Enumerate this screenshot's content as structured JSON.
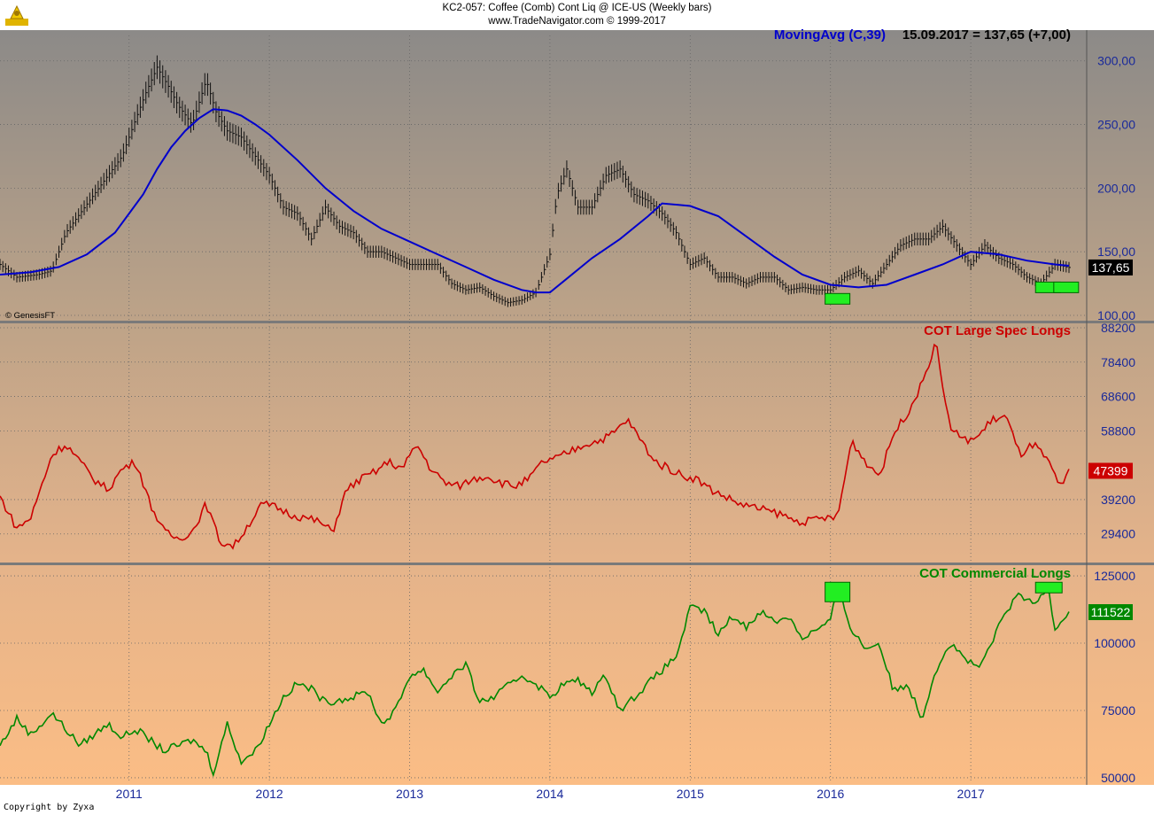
{
  "header": {
    "symbol_line": "KC2-057:  Coffee (Comb) Cont Liq @ ICE-US  (Weekly bars)",
    "source_line": "www.TradeNavigator.com © 1999-2017"
  },
  "footer": {
    "copyright": "Copyright by Zyxa"
  },
  "watermark": "© GenesisFT",
  "colors": {
    "price": "#000000",
    "ma": "#0000cc",
    "spec": "#cc0000",
    "comm": "#008800",
    "highlight": "#22ee22",
    "grid": "#666666"
  },
  "chart_data": [
    {
      "type": "line",
      "panel": "price",
      "title": "MovingAvg (C,39)",
      "readout": "15.09.2017 = 137,65 (+7,00)",
      "last_value_label": "137,65",
      "ylim": [
        100,
        320
      ],
      "yticks": [
        100,
        150,
        200,
        250,
        300
      ],
      "ytick_labels": [
        "100,00",
        "150,00",
        "200,00",
        "250,00",
        "300,00"
      ],
      "x_ticks": [
        2011,
        2012,
        2013,
        2014,
        2015,
        2016,
        2017
      ],
      "x_tick_labels": [
        "2011",
        "2012",
        "2013",
        "2014",
        "2015",
        "2016",
        "2017"
      ],
      "xlim": [
        2010.08,
        2017.82
      ],
      "series": [
        {
          "name": "Price (weekly close)",
          "style": "bars",
          "x": [
            2010.08,
            2010.2,
            2010.35,
            2010.45,
            2010.55,
            2010.65,
            2010.75,
            2010.85,
            2010.95,
            2011.05,
            2011.12,
            2011.2,
            2011.28,
            2011.35,
            2011.45,
            2011.55,
            2011.62,
            2011.7,
            2011.8,
            2011.9,
            2012.0,
            2012.1,
            2012.2,
            2012.3,
            2012.4,
            2012.5,
            2012.6,
            2012.7,
            2012.8,
            2012.9,
            2013.0,
            2013.1,
            2013.2,
            2013.3,
            2013.4,
            2013.5,
            2013.6,
            2013.7,
            2013.8,
            2013.9,
            2014.0,
            2014.05,
            2014.12,
            2014.2,
            2014.3,
            2014.4,
            2014.5,
            2014.6,
            2014.7,
            2014.8,
            2014.9,
            2015.0,
            2015.1,
            2015.2,
            2015.3,
            2015.4,
            2015.5,
            2015.6,
            2015.7,
            2015.8,
            2015.9,
            2016.0,
            2016.1,
            2016.2,
            2016.3,
            2016.4,
            2016.5,
            2016.6,
            2016.7,
            2016.8,
            2016.9,
            2017.0,
            2017.1,
            2017.2,
            2017.3,
            2017.4,
            2017.5,
            2017.6,
            2017.7
          ],
          "values": [
            140,
            130,
            132,
            135,
            165,
            180,
            195,
            210,
            225,
            255,
            275,
            295,
            280,
            265,
            250,
            285,
            260,
            245,
            240,
            225,
            210,
            185,
            180,
            160,
            185,
            170,
            165,
            150,
            150,
            145,
            140,
            140,
            140,
            125,
            120,
            122,
            115,
            110,
            112,
            118,
            148,
            195,
            215,
            185,
            185,
            210,
            215,
            195,
            190,
            180,
            165,
            140,
            145,
            130,
            130,
            125,
            130,
            130,
            120,
            122,
            120,
            120,
            130,
            135,
            125,
            140,
            155,
            160,
            160,
            170,
            155,
            140,
            155,
            145,
            140,
            130,
            125,
            140,
            137.65
          ]
        },
        {
          "name": "MovingAvg (C,39)",
          "style": "line",
          "x": [
            2010.08,
            2010.3,
            2010.5,
            2010.7,
            2010.9,
            2011.0,
            2011.1,
            2011.2,
            2011.3,
            2011.4,
            2011.5,
            2011.6,
            2011.7,
            2011.8,
            2011.9,
            2012.0,
            2012.2,
            2012.4,
            2012.6,
            2012.8,
            2013.0,
            2013.2,
            2013.4,
            2013.6,
            2013.8,
            2013.9,
            2014.0,
            2014.1,
            2014.3,
            2014.5,
            2014.7,
            2014.8,
            2015.0,
            2015.2,
            2015.4,
            2015.6,
            2015.8,
            2016.0,
            2016.2,
            2016.4,
            2016.6,
            2016.8,
            2017.0,
            2017.2,
            2017.4,
            2017.6,
            2017.7
          ],
          "values": [
            132,
            134,
            138,
            148,
            165,
            180,
            195,
            215,
            232,
            245,
            255,
            262,
            261,
            257,
            250,
            242,
            222,
            200,
            182,
            168,
            158,
            148,
            138,
            128,
            120,
            118,
            118,
            127,
            145,
            160,
            178,
            188,
            186,
            178,
            162,
            146,
            132,
            124,
            122,
            124,
            132,
            140,
            150,
            148,
            143,
            140,
            139
          ]
        }
      ]
    },
    {
      "type": "line",
      "panel": "spec",
      "title": "COT Large Spec Longs",
      "last_value_label": "47399",
      "ylim": [
        22000,
        88200
      ],
      "yticks": [
        29400,
        39200,
        58800,
        68600,
        78400,
        88200
      ],
      "ytick_labels": [
        "29400",
        "39200",
        "58800",
        "68600",
        "78400",
        "88200"
      ],
      "series": [
        {
          "name": "COT Large Spec Longs",
          "x": [
            2010.08,
            2010.2,
            2010.3,
            2010.45,
            2010.55,
            2010.65,
            2010.75,
            2010.85,
            2010.95,
            2011.05,
            2011.15,
            2011.25,
            2011.35,
            2011.45,
            2011.55,
            2011.65,
            2011.75,
            2011.85,
            2011.95,
            2012.05,
            2012.15,
            2012.25,
            2012.35,
            2012.45,
            2012.55,
            2012.65,
            2012.75,
            2012.85,
            2012.95,
            2013.05,
            2013.15,
            2013.25,
            2013.35,
            2013.45,
            2013.55,
            2013.65,
            2013.75,
            2013.85,
            2013.95,
            2014.05,
            2014.15,
            2014.25,
            2014.35,
            2014.45,
            2014.55,
            2014.65,
            2014.75,
            2014.85,
            2014.95,
            2015.05,
            2015.15,
            2015.25,
            2015.35,
            2015.45,
            2015.55,
            2015.65,
            2015.75,
            2015.85,
            2015.95,
            2016.05,
            2016.15,
            2016.25,
            2016.35,
            2016.45,
            2016.55,
            2016.65,
            2016.75,
            2016.85,
            2016.95,
            2017.05,
            2017.15,
            2017.25,
            2017.35,
            2017.45,
            2017.55,
            2017.65,
            2017.7
          ],
          "values": [
            40000,
            31000,
            34000,
            52000,
            55000,
            50000,
            45000,
            42000,
            48000,
            50000,
            38000,
            30000,
            28000,
            30000,
            38000,
            27000,
            26000,
            32000,
            38000,
            37000,
            35000,
            34000,
            33000,
            30000,
            42000,
            45000,
            47000,
            50000,
            48000,
            55000,
            48000,
            44000,
            43000,
            45000,
            46000,
            44000,
            43000,
            45000,
            50000,
            51000,
            53000,
            55000,
            56000,
            58000,
            62000,
            56000,
            50000,
            48000,
            46000,
            45000,
            42000,
            40000,
            38000,
            37000,
            36000,
            35000,
            33000,
            33000,
            34000,
            34000,
            56000,
            50000,
            46000,
            58000,
            64000,
            72000,
            84000,
            60000,
            56000,
            57000,
            62000,
            63000,
            52000,
            55000,
            50000,
            42000,
            47399
          ]
        }
      ]
    },
    {
      "type": "line",
      "panel": "comm",
      "title": "COT Commercial Longs",
      "last_value_label": "111522",
      "ylim": [
        48000,
        127000
      ],
      "yticks": [
        50000,
        75000,
        100000,
        125000
      ],
      "ytick_labels": [
        "50000",
        "75000",
        "100000",
        "125000"
      ],
      "series": [
        {
          "name": "COT Commercial Longs",
          "x": [
            2010.08,
            2010.2,
            2010.3,
            2010.45,
            2010.55,
            2010.65,
            2010.75,
            2010.85,
            2010.95,
            2011.05,
            2011.15,
            2011.25,
            2011.35,
            2011.45,
            2011.55,
            2011.6,
            2011.7,
            2011.8,
            2011.9,
            2012.0,
            2012.1,
            2012.2,
            2012.3,
            2012.4,
            2012.5,
            2012.6,
            2012.7,
            2012.8,
            2012.9,
            2013.0,
            2013.1,
            2013.2,
            2013.3,
            2013.4,
            2013.5,
            2013.6,
            2013.7,
            2013.8,
            2013.9,
            2014.0,
            2014.1,
            2014.2,
            2014.3,
            2014.4,
            2014.5,
            2014.6,
            2014.7,
            2014.8,
            2014.9,
            2015.0,
            2015.1,
            2015.2,
            2015.3,
            2015.4,
            2015.5,
            2015.6,
            2015.7,
            2015.8,
            2015.9,
            2016.0,
            2016.05,
            2016.15,
            2016.25,
            2016.35,
            2016.45,
            2016.55,
            2016.65,
            2016.75,
            2016.85,
            2016.95,
            2017.05,
            2017.15,
            2017.25,
            2017.35,
            2017.45,
            2017.55,
            2017.6,
            2017.7
          ],
          "values": [
            62000,
            72000,
            66000,
            74000,
            68000,
            62000,
            66000,
            70000,
            65000,
            68000,
            64000,
            60000,
            62000,
            64000,
            60000,
            52000,
            70000,
            56000,
            60000,
            70000,
            80000,
            85000,
            83000,
            78000,
            79000,
            80000,
            82000,
            70000,
            75000,
            88000,
            90000,
            82000,
            88000,
            92000,
            78000,
            80000,
            84000,
            88000,
            85000,
            80000,
            85000,
            86000,
            82000,
            88000,
            75000,
            80000,
            85000,
            90000,
            95000,
            113000,
            112000,
            103000,
            110000,
            106000,
            112000,
            108000,
            110000,
            102000,
            105000,
            108000,
            121000,
            105000,
            98000,
            100000,
            82000,
            85000,
            72000,
            90000,
            100000,
            95000,
            90000,
            100000,
            112000,
            118000,
            114000,
            121000,
            106000,
            111522
          ]
        }
      ]
    }
  ]
}
